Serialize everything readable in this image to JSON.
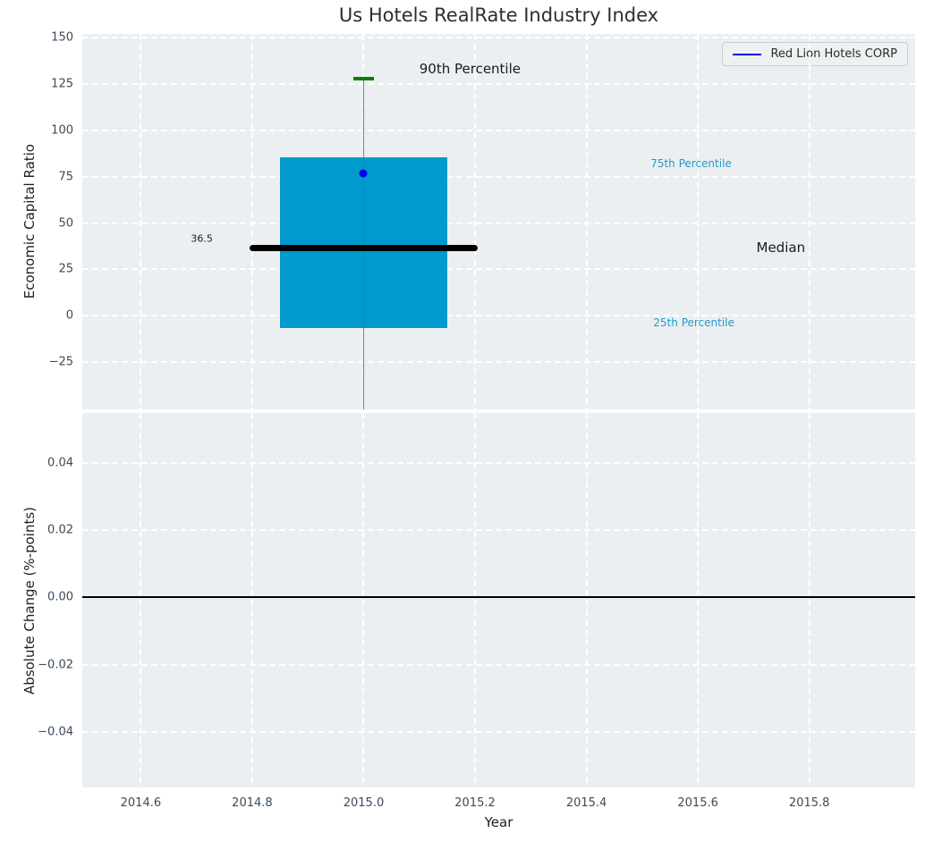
{
  "title": "Us Hotels RealRate Industry Index",
  "colors": {
    "figure_bg": "#ffffff",
    "axes_bg": "#eceff1",
    "grid": "#ffffff",
    "tick_label": "#3b4a5a",
    "text": "#1f1f1f"
  },
  "chart_data": [
    {
      "type": "boxplot",
      "title": "Us Hotels RealRate Industry Index",
      "ylabel": "Economic Capital Ratio",
      "xlim": [
        2014.495,
        2015.99
      ],
      "ylim": [
        -50.5,
        152
      ],
      "grid": "on",
      "yticks": {
        "values": [
          150,
          125,
          100,
          75,
          50,
          25,
          0,
          -25
        ],
        "labels": [
          "150",
          "125",
          "100",
          "75",
          "50",
          "25",
          "0",
          "−25"
        ]
      },
      "xticks": {
        "values": [
          2014.6,
          2014.8,
          2015.0,
          2015.2,
          2015.4,
          2015.6,
          2015.8
        ],
        "labels": []
      },
      "box": {
        "x_center": 2015.0,
        "x_left": 2014.85,
        "x_right": 2015.15,
        "q1_25th_percentile": -6.5,
        "q3_75th_percentile": 85.5,
        "median": 36.5,
        "whisker_high_90th_percentile": 128,
        "whisker_low": -50.5,
        "median_line_span": [
          2014.795,
          2015.205
        ],
        "cap_halfwidth": 0.018,
        "fill_color": "#009ace",
        "median_color": "#000000",
        "whisker_color": "#5c6a74",
        "cap_color": "#008000"
      },
      "point": {
        "x": 2015.0,
        "y": 77,
        "color": "#0000ee",
        "label": "Red Lion Hotels CORP"
      },
      "annotations": [
        {
          "text": "90th Percentile",
          "x": 2015.1,
          "y": 133,
          "color": "#1a1a1a",
          "size": 15
        },
        {
          "text": "75th Percentile",
          "x": 2015.515,
          "y": 82,
          "color": "#1f9bca",
          "size": 12
        },
        {
          "text": "Median",
          "x": 2015.705,
          "y": 37,
          "color": "#1a1a1a",
          "size": 15
        },
        {
          "text": "25th Percentile",
          "x": 2015.52,
          "y": -3.5,
          "color": "#1f9bca",
          "size": 12
        },
        {
          "text": "36.5",
          "x": 2014.69,
          "y": 41.5,
          "color": "#1a1a1a",
          "size": 11
        }
      ],
      "legend": {
        "label": "Red Lion Hotels CORP",
        "line_color": "#0000ee",
        "position": "upper right"
      }
    },
    {
      "type": "line",
      "ylabel": "Absolute Change (%-points)",
      "xlabel": "Year",
      "xlim": [
        2014.495,
        2015.99
      ],
      "ylim": [
        -0.0565,
        0.0548
      ],
      "grid": "on",
      "yticks": {
        "values": [
          0.04,
          0.02,
          0.0,
          -0.02,
          -0.04
        ],
        "labels": [
          "0.04",
          "0.02",
          "0.00",
          "−0.02",
          "−0.04"
        ]
      },
      "xticks": {
        "values": [
          2014.6,
          2014.8,
          2015.0,
          2015.2,
          2015.4,
          2015.6,
          2015.8
        ],
        "labels": [
          "2014.6",
          "2014.8",
          "2015.0",
          "2015.2",
          "2015.4",
          "2015.6",
          "2015.8"
        ]
      },
      "zero_line": {
        "y": 0.0,
        "color": "#000000",
        "width": 2
      }
    }
  ]
}
